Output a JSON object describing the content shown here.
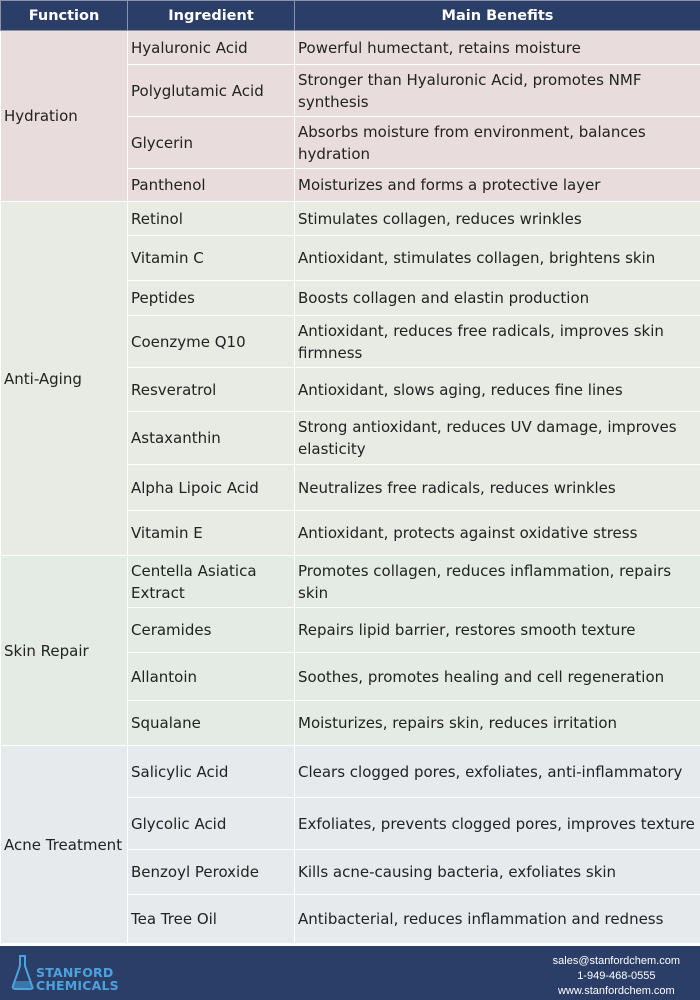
{
  "table": {
    "headers": [
      "Function",
      "Ingredient",
      "Main Benefits"
    ],
    "groups": [
      {
        "function": "Hydration",
        "rows": [
          {
            "ingredient": "Hyaluronic Acid",
            "benefit": "Powerful humectant, retains moisture"
          },
          {
            "ingredient": "Polyglutamic Acid",
            "benefit": "Stronger than Hyaluronic Acid, promotes NMF synthesis"
          },
          {
            "ingredient": "Glycerin",
            "benefit": "Absorbs moisture from environment, balances hydration"
          },
          {
            "ingredient": "Panthenol",
            "benefit": "Moisturizes and forms a protective layer"
          }
        ]
      },
      {
        "function": "Anti-Aging",
        "rows": [
          {
            "ingredient": "Retinol",
            "benefit": "Stimulates collagen, reduces wrinkles"
          },
          {
            "ingredient": "Vitamin C",
            "benefit": "Antioxidant, stimulates collagen, brightens skin"
          },
          {
            "ingredient": "Peptides",
            "benefit": "Boosts collagen and elastin production"
          },
          {
            "ingredient": "Coenzyme Q10",
            "benefit": "Antioxidant, reduces free radicals, improves skin firmness"
          },
          {
            "ingredient": "Resveratrol",
            "benefit": "Antioxidant, slows aging, reduces fine lines"
          },
          {
            "ingredient": "Astaxanthin",
            "benefit": "Strong antioxidant, reduces UV damage, improves elasticity"
          },
          {
            "ingredient": "Alpha Lipoic Acid",
            "benefit": "Neutralizes free radicals, reduces wrinkles"
          },
          {
            "ingredient": "Vitamin E",
            "benefit": "Antioxidant, protects against oxidative stress"
          }
        ]
      },
      {
        "function": "Skin Repair",
        "rows": [
          {
            "ingredient": "Centella Asiatica Extract",
            "benefit": "Promotes collagen, reduces inflammation, repairs skin"
          },
          {
            "ingredient": "Ceramides",
            "benefit": "Repairs lipid barrier, restores smooth texture"
          },
          {
            "ingredient": "Allantoin",
            "benefit": "Soothes, promotes healing and cell regeneration"
          },
          {
            "ingredient": "Squalane",
            "benefit": "Moisturizes, repairs skin, reduces irritation"
          }
        ]
      },
      {
        "function": "Acne Treatment",
        "rows": [
          {
            "ingredient": "Salicylic Acid",
            "benefit": "Clears clogged pores, exfoliates, anti-inflammatory"
          },
          {
            "ingredient": "Glycolic Acid",
            "benefit": "Exfoliates, prevents clogged pores, improves texture"
          },
          {
            "ingredient": "Benzoyl Peroxide",
            "benefit": "Kills acne-causing bacteria, exfoliates skin"
          },
          {
            "ingredient": "Tea Tree Oil",
            "benefit": "Antibacterial, reduces inflammation and redness"
          }
        ]
      }
    ]
  },
  "footer": {
    "logo_line1": "STANFORD",
    "logo_line2": "CHEMICALS",
    "email": "sales@stanfordchem.com",
    "phone": "1-949-468-0555",
    "website": "www.stanfordchem.com"
  },
  "colors": {
    "header_bg": "#2b3e68",
    "logo_blue": "#4aa3df",
    "hydration_bg": "#e9dcdc",
    "antiaging_bg": "#e8eae4",
    "repair_bg": "#e4ebe4",
    "acne_bg": "#e6eaec"
  }
}
